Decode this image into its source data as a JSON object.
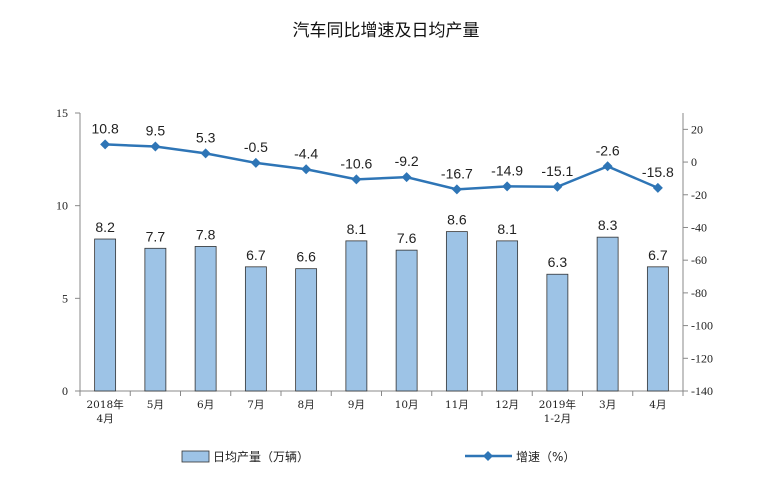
{
  "chart_data": {
    "type": "bar+line",
    "title": "汽车同比增速及日均产量",
    "categories": [
      [
        "2018年",
        "4月"
      ],
      [
        "5月"
      ],
      [
        "6月"
      ],
      [
        "7月"
      ],
      [
        "8月"
      ],
      [
        "9月"
      ],
      [
        "10月"
      ],
      [
        "11月"
      ],
      [
        "12月"
      ],
      [
        "2019年",
        "1-2月"
      ],
      [
        "3月"
      ],
      [
        "4月"
      ]
    ],
    "series": [
      {
        "name": "日均产量（万辆）",
        "type": "bar",
        "axis": "left",
        "color": "#9dc3e6",
        "values": [
          8.2,
          7.7,
          7.8,
          6.7,
          6.6,
          8.1,
          7.6,
          8.6,
          8.1,
          6.3,
          8.3,
          6.7
        ],
        "labels": [
          "8.2",
          "7.7",
          "7.8",
          "6.7",
          "6.6",
          "8.1",
          "7.6",
          "8.6",
          "8.1",
          "6.3",
          "8.3",
          "6.7"
        ]
      },
      {
        "name": "增速（%）",
        "type": "line",
        "axis": "right",
        "color": "#2e75b6",
        "values": [
          10.8,
          9.5,
          5.3,
          -0.5,
          -4.4,
          -10.6,
          -9.2,
          -16.7,
          -14.9,
          -15.1,
          -2.6,
          -15.8
        ],
        "labels": [
          "10.8",
          "9.5",
          "5.3",
          "-0.5",
          "-4.4",
          "-10.6",
          "-9.2",
          "-16.7",
          "-14.9",
          "-15.1",
          "-2.6",
          "-15.8"
        ]
      }
    ],
    "y_left": {
      "min": 0,
      "max": 15,
      "ticks": [
        "0",
        "5",
        "10",
        "15"
      ],
      "values": [
        0,
        5,
        10,
        15
      ]
    },
    "y_right": {
      "min": -140,
      "max": 30,
      "ticks": [
        "20",
        "0",
        "-20",
        "-40",
        "-60",
        "-80",
        "-100",
        "-120",
        "-140"
      ],
      "values": [
        20,
        0,
        -20,
        -40,
        -60,
        -80,
        -100,
        -120,
        -140
      ]
    },
    "grid": false,
    "legend_position": "bottom"
  }
}
